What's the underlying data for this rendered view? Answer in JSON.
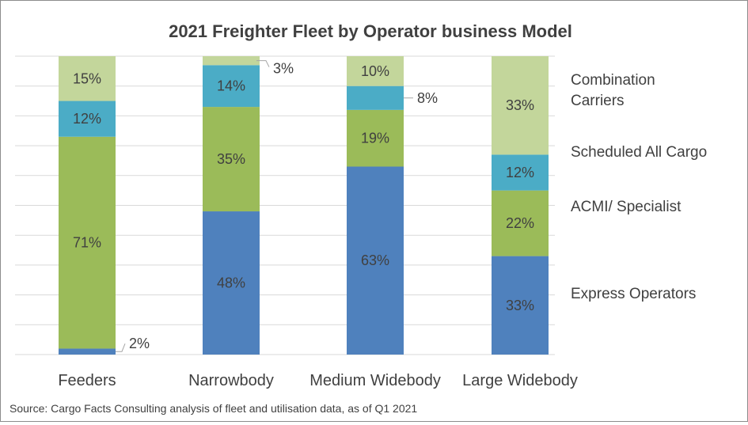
{
  "chart_data": {
    "type": "bar",
    "stacked": true,
    "percent": true,
    "title": "2021 Freighter Fleet by Operator business Model",
    "categories": [
      "Feeders",
      "Narrowbody",
      "Medium Widebody",
      "Large Widebody"
    ],
    "ylim": [
      0,
      100
    ],
    "grid": true,
    "legend": "right",
    "series": [
      {
        "name": "Express Operators",
        "color": "#4f81bd",
        "values": [
          2,
          48,
          63,
          33
        ],
        "labels": [
          "2%",
          "48%",
          "63%",
          "33%"
        ]
      },
      {
        "name": "ACMI/ Specialist",
        "color": "#9bbb59",
        "values": [
          71,
          35,
          19,
          22
        ],
        "labels": [
          "71%",
          "35%",
          "19%",
          "22%"
        ]
      },
      {
        "name": "Scheduled  All Cargo",
        "color": "#4bacc6",
        "values": [
          12,
          14,
          8,
          12
        ],
        "labels": [
          "12%",
          "14%",
          "8%",
          "12%"
        ]
      },
      {
        "name": "Combination Carriers",
        "color": "#c3d69b",
        "values": [
          15,
          3,
          10,
          33
        ],
        "labels": [
          "15%",
          "3%",
          "10%",
          "33%"
        ]
      }
    ],
    "legend_lines": [
      [
        "Express Operators"
      ],
      [
        "ACMI/ Specialist"
      ],
      [
        "Scheduled  All Cargo"
      ],
      [
        "Combination",
        "Carriers"
      ]
    ],
    "source": "Source: Cargo Facts Consulting analysis of fleet and utilisation data, as of Q1 2021"
  }
}
